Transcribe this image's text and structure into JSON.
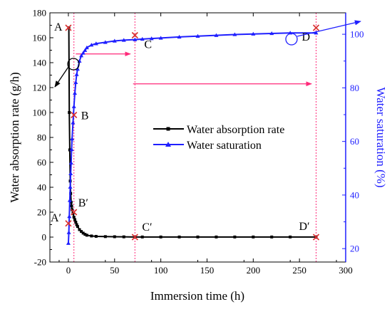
{
  "chart_data": {
    "type": "line",
    "xlabel": "Immersion time (h)",
    "ylabel_left": "Water absorption rate (g/h)",
    "ylabel_right": "Water saturation (%)",
    "xlim": [
      -20,
      300
    ],
    "ylim_left": [
      -20,
      180
    ],
    "ylim_right": [
      15,
      108
    ],
    "x_ticks": [
      0,
      50,
      100,
      150,
      200,
      250,
      300
    ],
    "y_left_ticks": [
      -20,
      0,
      20,
      40,
      60,
      80,
      100,
      120,
      140,
      160,
      180
    ],
    "y_right_ticks": [
      20,
      40,
      60,
      80,
      100
    ],
    "colors": {
      "rate": "#000000",
      "saturation": "#1f1fff",
      "marker": "#d93030",
      "guide": "#ff2a7a"
    },
    "legend_placement": "center-right",
    "series": [
      {
        "name": "Water absorption rate",
        "axis": "left",
        "marker": "square",
        "x": [
          0.5,
          1,
          1.5,
          2,
          2.5,
          3,
          3.5,
          4,
          5,
          6,
          7,
          8,
          9,
          10,
          12,
          14,
          16,
          18,
          20,
          25,
          30,
          40,
          50,
          60,
          72,
          80,
          100,
          120,
          140,
          160,
          180,
          200,
          220,
          240,
          268
        ],
        "values": [
          168,
          100,
          70,
          45,
          35,
          28,
          25,
          22,
          19,
          16,
          14,
          12,
          10,
          8.5,
          6,
          4.5,
          3.2,
          2.2,
          1.5,
          0.9,
          0.6,
          0.4,
          0.3,
          0.2,
          0.1,
          0.1,
          0.1,
          0.1,
          0.1,
          0.1,
          0.1,
          0.1,
          0.1,
          0.1,
          0.1
        ]
      },
      {
        "name": "Water saturation",
        "axis": "right",
        "marker": "triangle",
        "x": [
          0,
          0.5,
          1,
          1.5,
          2,
          2.5,
          3,
          3.5,
          4,
          5,
          6,
          7,
          8,
          9,
          10,
          12,
          14,
          16,
          18,
          20,
          25,
          30,
          40,
          50,
          60,
          72,
          80,
          90,
          100,
          120,
          140,
          160,
          180,
          200,
          220,
          240,
          268
        ],
        "values": [
          22,
          26,
          32,
          38,
          43,
          48,
          52,
          57,
          61,
          67,
          73,
          78,
          82,
          85,
          87,
          90,
          92,
          93,
          94,
          95,
          96,
          96.5,
          97,
          97.5,
          97.8,
          98,
          98.2,
          98.4,
          98.6,
          99,
          99.3,
          99.6,
          99.9,
          100.1,
          100.3,
          100.5,
          100.5
        ]
      }
    ],
    "points": [
      {
        "label": "A",
        "x": 0,
        "y": 168,
        "axis": "left"
      },
      {
        "label": "B",
        "x": 6,
        "y": 98,
        "axis": "left"
      },
      {
        "label": "C",
        "x": 72,
        "y": 162,
        "axis": "left"
      },
      {
        "label": "D",
        "x": 268,
        "y": 168,
        "axis": "left"
      },
      {
        "label": "A′",
        "x": 0,
        "y": 11,
        "axis": "left"
      },
      {
        "label": "B′",
        "x": 6,
        "y": 20,
        "axis": "left"
      },
      {
        "label": "C′",
        "x": 72,
        "y": 0,
        "axis": "left"
      },
      {
        "label": "D′",
        "x": 268,
        "y": 0,
        "axis": "left"
      }
    ],
    "vertical_guides_x": [
      6,
      72,
      268
    ],
    "horizontal_arrows": [
      {
        "from_x": 8,
        "to_x": 67,
        "y": 147,
        "axis": "left"
      },
      {
        "from_x": 70,
        "to_x": 263,
        "y": 123,
        "axis": "left"
      }
    ]
  }
}
